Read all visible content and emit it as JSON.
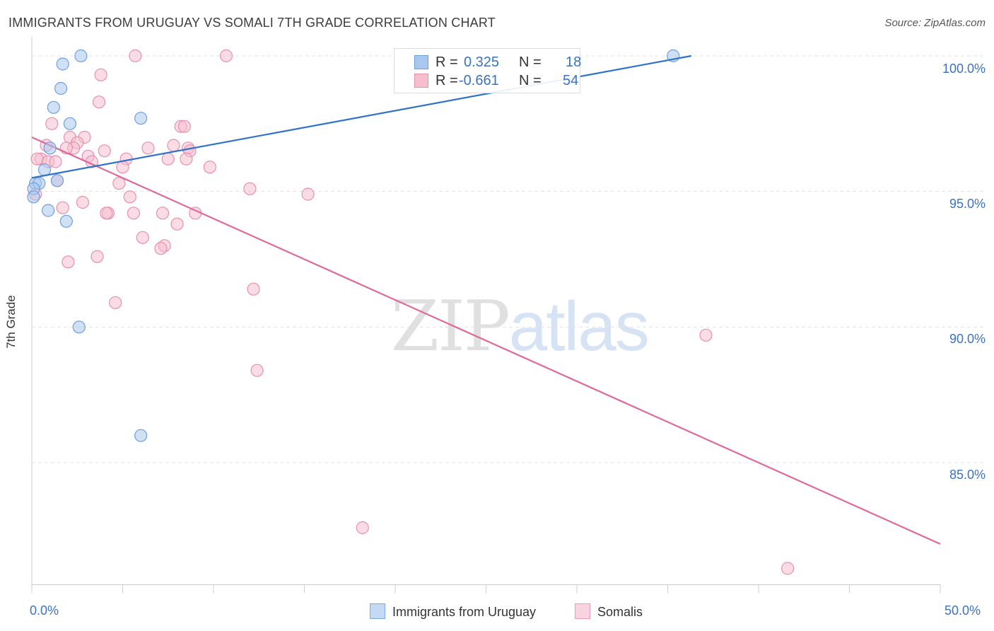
{
  "header": {
    "title": "IMMIGRANTS FROM URUGUAY VS SOMALI 7TH GRADE CORRELATION CHART",
    "source": "Source: ZipAtlas.com"
  },
  "watermark": {
    "zip": "ZIP",
    "atlas": "atlas"
  },
  "legend": {
    "rows": [
      {
        "r_label": "R =",
        "r_value": "0.325",
        "n_label": "N =",
        "n_value": "18"
      },
      {
        "r_label": "R =",
        "r_value": "-0.661",
        "n_label": "N =",
        "n_value": "54"
      }
    ]
  },
  "colors": {
    "blue_fill": "#aac8ef",
    "blue_stroke": "#6f9fdc",
    "blue_line": "#2f72c9",
    "pink_fill": "#f6bfd0",
    "pink_stroke": "#e98fae",
    "pink_line": "#e0689a",
    "grid": "#e3e3e3",
    "axis": "#cccccc",
    "tick_text": "#3a72c2"
  },
  "chart_data": {
    "type": "scatter",
    "title": "IMMIGRANTS FROM URUGUAY VS SOMALI 7TH GRADE CORRELATION CHART",
    "xlabel": "",
    "ylabel": "7th Grade",
    "xlim": [
      0,
      50
    ],
    "ylim": [
      80.5,
      100.4
    ],
    "x_tick_labels": [
      "0.0%",
      "50.0%"
    ],
    "y_ticks": [
      85,
      90,
      95,
      100
    ],
    "y_tick_labels": [
      "85.0%",
      "90.0%",
      "95.0%",
      "100.0%"
    ],
    "grid": true,
    "legend_position": "bottom-center",
    "series": [
      {
        "name": "Immigrants from Uruguay",
        "color": "blue",
        "r": 0.325,
        "n": 18,
        "trendline": [
          [
            0,
            95.5
          ],
          [
            36.3,
            100
          ]
        ],
        "points": [
          [
            2.7,
            100
          ],
          [
            1.7,
            99.7
          ],
          [
            1.6,
            98.8
          ],
          [
            1.2,
            98.1
          ],
          [
            6.0,
            97.7
          ],
          [
            2.1,
            97.5
          ],
          [
            1.0,
            96.6
          ],
          [
            0.7,
            95.8
          ],
          [
            0.2,
            95.3
          ],
          [
            0.4,
            95.3
          ],
          [
            0.1,
            95.1
          ],
          [
            1.4,
            95.4
          ],
          [
            0.1,
            94.8
          ],
          [
            0.9,
            94.3
          ],
          [
            1.9,
            93.9
          ],
          [
            2.6,
            90.0
          ],
          [
            6.0,
            86.0
          ],
          [
            35.3,
            100
          ]
        ]
      },
      {
        "name": "Somalis",
        "color": "pink",
        "r": -0.661,
        "n": 54,
        "trendline": [
          [
            0,
            97.0
          ],
          [
            50,
            82.0
          ]
        ],
        "points": [
          [
            5.7,
            100
          ],
          [
            10.7,
            100
          ],
          [
            3.8,
            99.3
          ],
          [
            3.7,
            98.3
          ],
          [
            1.1,
            97.5
          ],
          [
            8.2,
            97.4
          ],
          [
            8.4,
            97.4
          ],
          [
            2.9,
            97.0
          ],
          [
            2.1,
            97.0
          ],
          [
            2.5,
            96.8
          ],
          [
            0.8,
            96.7
          ],
          [
            7.8,
            96.7
          ],
          [
            2.3,
            96.6
          ],
          [
            6.4,
            96.6
          ],
          [
            1.9,
            96.6
          ],
          [
            8.6,
            96.6
          ],
          [
            8.7,
            96.5
          ],
          [
            4.0,
            96.5
          ],
          [
            3.1,
            96.3
          ],
          [
            0.5,
            96.2
          ],
          [
            0.3,
            96.2
          ],
          [
            5.2,
            96.2
          ],
          [
            7.5,
            96.2
          ],
          [
            3.3,
            96.1
          ],
          [
            0.9,
            96.1
          ],
          [
            1.3,
            96.1
          ],
          [
            8.5,
            96.2
          ],
          [
            5.0,
            95.9
          ],
          [
            9.8,
            95.9
          ],
          [
            1.4,
            95.4
          ],
          [
            4.8,
            95.3
          ],
          [
            12.0,
            95.1
          ],
          [
            15.2,
            94.9
          ],
          [
            5.4,
            94.8
          ],
          [
            2.8,
            94.6
          ],
          [
            1.7,
            94.4
          ],
          [
            4.2,
            94.2
          ],
          [
            5.6,
            94.2
          ],
          [
            7.2,
            94.2
          ],
          [
            9.0,
            94.2
          ],
          [
            4.1,
            94.2
          ],
          [
            8.0,
            93.8
          ],
          [
            6.1,
            93.3
          ],
          [
            7.3,
            93.0
          ],
          [
            7.1,
            92.9
          ],
          [
            3.6,
            92.6
          ],
          [
            2.0,
            92.4
          ],
          [
            12.2,
            91.4
          ],
          [
            4.6,
            90.9
          ],
          [
            12.4,
            88.4
          ],
          [
            37.1,
            89.7
          ],
          [
            18.2,
            82.6
          ],
          [
            41.6,
            81.1
          ],
          [
            0.2,
            94.9
          ]
        ]
      }
    ]
  },
  "bottom_legend": {
    "items": [
      {
        "label": "Immigrants from Uruguay"
      },
      {
        "label": "Somalis"
      }
    ]
  }
}
